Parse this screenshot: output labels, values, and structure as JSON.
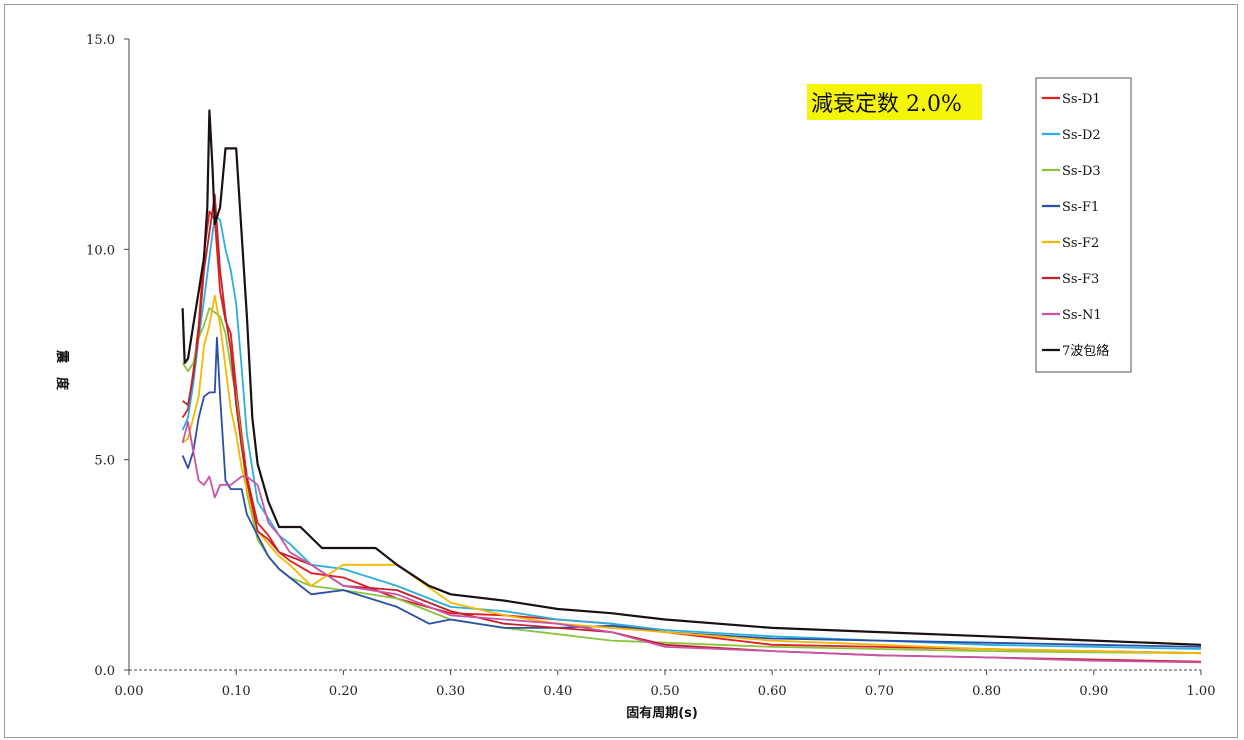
{
  "chart_data": {
    "type": "line",
    "title": "",
    "annotation": "減衰定数 2.0%",
    "annotation_bg": "#f5f50a",
    "xlabel": "固有周期(s)",
    "ylabel": "震度",
    "xlim": [
      0.0,
      1.0
    ],
    "ylim": [
      0.0,
      15.0
    ],
    "x_ticks": [
      "0.00",
      "0.10",
      "0.20",
      "0.30",
      "0.40",
      "0.50",
      "0.60",
      "0.70",
      "0.80",
      "0.90",
      "1.00"
    ],
    "y_ticks": [
      "0.0",
      "5.0",
      "10.0",
      "15.0"
    ],
    "grid": false,
    "legend_position": "top-right",
    "series": [
      {
        "name": "Ss-D1",
        "color": "#e02020",
        "x": [
          0.05,
          0.055,
          0.06,
          0.065,
          0.07,
          0.075,
          0.08,
          0.085,
          0.09,
          0.095,
          0.1,
          0.105,
          0.11,
          0.12,
          0.13,
          0.14,
          0.15,
          0.17,
          0.2,
          0.25,
          0.3,
          0.35,
          0.4,
          0.45,
          0.5,
          0.6,
          0.7,
          0.8,
          0.9,
          1.0
        ],
        "y": [
          6.0,
          6.2,
          7.1,
          8.2,
          9.9,
          10.9,
          10.7,
          9.0,
          8.3,
          8.0,
          6.7,
          5.6,
          4.6,
          3.5,
          3.2,
          2.8,
          2.6,
          2.3,
          2.2,
          1.7,
          1.35,
          1.3,
          1.2,
          1.1,
          0.9,
          0.6,
          0.55,
          0.5,
          0.45,
          0.4
        ]
      },
      {
        "name": "Ss-D2",
        "color": "#2aaee0",
        "x": [
          0.05,
          0.055,
          0.06,
          0.065,
          0.07,
          0.075,
          0.08,
          0.085,
          0.09,
          0.095,
          0.1,
          0.105,
          0.11,
          0.12,
          0.13,
          0.14,
          0.15,
          0.17,
          0.2,
          0.25,
          0.3,
          0.35,
          0.4,
          0.45,
          0.5,
          0.6,
          0.7,
          0.8,
          0.9,
          1.0
        ],
        "y": [
          5.7,
          6.0,
          6.8,
          7.9,
          8.8,
          9.8,
          10.8,
          10.7,
          10.0,
          9.5,
          8.7,
          7.2,
          5.6,
          4.0,
          3.6,
          3.2,
          3.0,
          2.5,
          2.4,
          2.0,
          1.5,
          1.4,
          1.2,
          1.1,
          0.95,
          0.8,
          0.7,
          0.6,
          0.55,
          0.5
        ]
      },
      {
        "name": "Ss-D3",
        "color": "#8ac43f",
        "x": [
          0.05,
          0.055,
          0.06,
          0.065,
          0.07,
          0.075,
          0.08,
          0.085,
          0.09,
          0.095,
          0.1,
          0.105,
          0.11,
          0.12,
          0.13,
          0.14,
          0.15,
          0.17,
          0.2,
          0.25,
          0.3,
          0.35,
          0.4,
          0.45,
          0.5,
          0.6,
          0.7,
          0.8,
          0.9,
          1.0
        ],
        "y": [
          7.3,
          7.1,
          7.3,
          7.9,
          8.2,
          8.6,
          8.5,
          8.4,
          8.0,
          7.2,
          6.5,
          5.4,
          4.2,
          3.1,
          2.7,
          2.4,
          2.2,
          2.0,
          1.9,
          1.7,
          1.2,
          1.0,
          0.85,
          0.7,
          0.65,
          0.55,
          0.5,
          0.45,
          0.42,
          0.4
        ]
      },
      {
        "name": "Ss-F1",
        "color": "#2a4fa8",
        "x": [
          0.05,
          0.055,
          0.06,
          0.065,
          0.07,
          0.075,
          0.08,
          0.082,
          0.085,
          0.09,
          0.095,
          0.1,
          0.105,
          0.11,
          0.12,
          0.13,
          0.14,
          0.15,
          0.17,
          0.2,
          0.25,
          0.28,
          0.3,
          0.35,
          0.4,
          0.45,
          0.5,
          0.6,
          0.7,
          0.8,
          0.9,
          1.0
        ],
        "y": [
          5.1,
          4.8,
          5.2,
          6.0,
          6.5,
          6.6,
          6.6,
          7.9,
          6.5,
          4.5,
          4.3,
          4.3,
          4.3,
          3.7,
          3.2,
          2.7,
          2.4,
          2.2,
          1.8,
          1.9,
          1.5,
          1.1,
          1.2,
          1.0,
          1.0,
          1.05,
          0.9,
          0.75,
          0.7,
          0.65,
          0.6,
          0.55
        ]
      },
      {
        "name": "Ss-F2",
        "color": "#f5b800",
        "x": [
          0.05,
          0.055,
          0.06,
          0.065,
          0.07,
          0.075,
          0.08,
          0.085,
          0.09,
          0.095,
          0.1,
          0.105,
          0.11,
          0.12,
          0.13,
          0.14,
          0.15,
          0.17,
          0.2,
          0.25,
          0.3,
          0.35,
          0.4,
          0.45,
          0.5,
          0.6,
          0.7,
          0.8,
          0.9,
          1.0
        ],
        "y": [
          5.4,
          5.5,
          6.0,
          6.5,
          7.7,
          8.2,
          8.9,
          8.2,
          7.2,
          6.2,
          5.6,
          4.8,
          4.3,
          3.3,
          3.0,
          2.7,
          2.5,
          2.0,
          2.5,
          2.5,
          1.6,
          1.3,
          1.1,
          1.0,
          0.9,
          0.7,
          0.6,
          0.5,
          0.45,
          0.4
        ]
      },
      {
        "name": "Ss-F3",
        "color": "#c0222a",
        "x": [
          0.05,
          0.055,
          0.06,
          0.065,
          0.07,
          0.075,
          0.08,
          0.085,
          0.09,
          0.095,
          0.1,
          0.105,
          0.11,
          0.12,
          0.13,
          0.14,
          0.15,
          0.17,
          0.2,
          0.25,
          0.3,
          0.35,
          0.4,
          0.45,
          0.5,
          0.6,
          0.7,
          0.8,
          0.9,
          1.0
        ],
        "y": [
          6.4,
          6.3,
          7.0,
          8.0,
          9.5,
          10.4,
          11.3,
          9.5,
          8.4,
          7.6,
          6.3,
          5.3,
          4.5,
          3.3,
          3.1,
          2.8,
          2.7,
          2.5,
          2.0,
          1.9,
          1.4,
          1.1,
          1.0,
          0.9,
          0.6,
          0.45,
          0.35,
          0.3,
          0.25,
          0.2
        ]
      },
      {
        "name": "Ss-N1",
        "color": "#c855a8",
        "x": [
          0.05,
          0.055,
          0.06,
          0.065,
          0.07,
          0.075,
          0.08,
          0.085,
          0.09,
          0.095,
          0.1,
          0.105,
          0.11,
          0.12,
          0.13,
          0.14,
          0.15,
          0.17,
          0.2,
          0.25,
          0.3,
          0.35,
          0.4,
          0.45,
          0.5,
          0.6,
          0.7,
          0.8,
          0.9,
          1.0
        ],
        "y": [
          5.4,
          5.9,
          5.2,
          4.5,
          4.4,
          4.6,
          4.1,
          4.4,
          4.4,
          4.4,
          4.5,
          4.6,
          4.6,
          4.4,
          3.5,
          3.2,
          2.8,
          2.5,
          2.0,
          1.8,
          1.3,
          1.2,
          1.1,
          0.9,
          0.55,
          0.45,
          0.35,
          0.3,
          0.22,
          0.18
        ]
      },
      {
        "name": "7波包絡",
        "color": "#1a1212",
        "x": [
          0.05,
          0.052,
          0.055,
          0.06,
          0.065,
          0.07,
          0.073,
          0.075,
          0.078,
          0.08,
          0.085,
          0.09,
          0.1,
          0.11,
          0.115,
          0.12,
          0.13,
          0.14,
          0.16,
          0.18,
          0.2,
          0.23,
          0.25,
          0.28,
          0.3,
          0.35,
          0.4,
          0.45,
          0.5,
          0.6,
          0.7,
          0.8,
          0.9,
          1.0
        ],
        "y": [
          8.6,
          7.3,
          7.4,
          8.2,
          9.0,
          9.8,
          11.0,
          13.3,
          11.9,
          10.6,
          11.0,
          12.4,
          12.4,
          8.4,
          6.0,
          4.9,
          4.0,
          3.4,
          3.4,
          2.9,
          2.9,
          2.9,
          2.5,
          2.0,
          1.8,
          1.65,
          1.45,
          1.35,
          1.2,
          1.0,
          0.9,
          0.8,
          0.7,
          0.6
        ]
      }
    ]
  }
}
